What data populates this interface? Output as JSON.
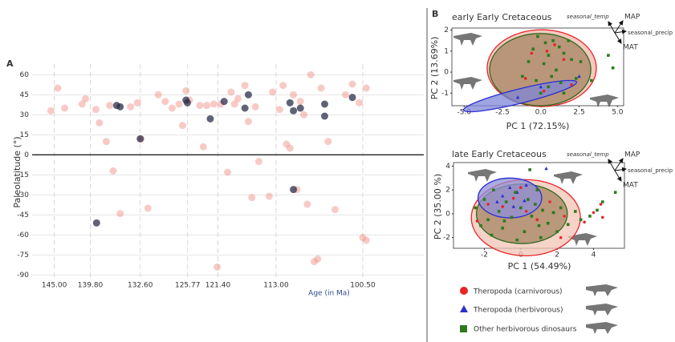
{
  "panels": [
    "A",
    "B"
  ],
  "chart_data": [
    {
      "type": "scatter",
      "ylabel": "Paleolatitude (°)",
      "xlabel": "Age (in Ma)",
      "xlim": [
        148.2,
        91.7
      ],
      "ylim": [
        -94,
        68
      ],
      "grid": true,
      "zero_line": true,
      "xticks": [
        {
          "value": 145,
          "label": "145.00"
        },
        {
          "value": 139.8,
          "label": "139.80"
        },
        {
          "value": 132.6,
          "label": "132.60"
        },
        125.77,
        {
          "value": 121.4,
          "label": "121.40"
        },
        {
          "value": 113,
          "label": "113.00"
        },
        {
          "value": 100.5,
          "label": "100.50"
        }
      ],
      "yticks": [
        60,
        45,
        30,
        15,
        0,
        -15,
        -30,
        -45,
        -60,
        -75,
        -90
      ],
      "series": [
        {
          "color": "#f08a80",
          "marker": "circle",
          "x": [
            144.5,
            145.5,
            143.5,
            141,
            140.5,
            139,
            138.5,
            137.5,
            137,
            136.5,
            135.5,
            134,
            133,
            132.5,
            131.5,
            130,
            129,
            128,
            127,
            126.5,
            126,
            125.5,
            124,
            123.5,
            123,
            122,
            121.5,
            121,
            120,
            119.5,
            119,
            118.5,
            117.5,
            117,
            116.5,
            116,
            115.5,
            114,
            113.5,
            112.5,
            112,
            111.5,
            111,
            110.5,
            110,
            109.5,
            109,
            108.5,
            108,
            107.5,
            107,
            106.5,
            105.5,
            104.5,
            103,
            102,
            101,
            100.5,
            100,
            100
          ],
          "values": [
            50,
            33,
            35,
            38,
            42,
            34,
            24,
            10,
            37,
            -12,
            -44,
            36,
            39,
            12,
            -40,
            45,
            40,
            35,
            38,
            22,
            48,
            41,
            37,
            6,
            37,
            38,
            -84,
            38,
            -13,
            47,
            38,
            42,
            52,
            25,
            -32,
            36,
            -5,
            -31,
            47,
            34,
            52,
            8,
            5,
            45,
            -26,
            40,
            30,
            -37,
            60,
            -80,
            -78,
            50,
            10,
            -41,
            45,
            53,
            39,
            -62,
            -64,
            50
          ]
        },
        {
          "color": "#2b2d48",
          "marker": "circle",
          "x": [
            138.9,
            136,
            135.5,
            132.6,
            126,
            125.8,
            122.5,
            120.5,
            117.5,
            117,
            111,
            110.5,
            110.5,
            109.5,
            106,
            106,
            102
          ],
          "values": [
            -51,
            37,
            36,
            12,
            41,
            39,
            27,
            40,
            35,
            45,
            39,
            -26,
            33,
            35,
            38,
            29,
            43
          ]
        }
      ]
    },
    {
      "type": "pca",
      "title": "early Early Cretaceous",
      "xlabel": "PC 1 (72.15%)",
      "ylabel": "PC 2 (13.69%)",
      "xlim": [
        -5.8,
        5.4
      ],
      "ylim": [
        -1.6,
        2.1
      ],
      "xticks": [
        {
          "value": -5,
          "label": "-5.0"
        },
        -2.5,
        {
          "value": 0,
          "label": "0.0"
        },
        2.5,
        {
          "value": 5,
          "label": "5.0"
        }
      ],
      "yticks": [
        -1,
        0,
        1,
        2
      ],
      "loadings": [
        "seasonal_temp",
        "MAP",
        "seasonal_precip",
        "MAT"
      ],
      "ellipses": [
        {
          "color": "#e8242a",
          "fill": "#f2b8a8",
          "cx": 0.06,
          "cy": 0.19,
          "rx": 3.56,
          "ry": 1.83,
          "angle": 0
        },
        {
          "color": "#2d6a1e",
          "fill": "#a48462",
          "cx": -0.04,
          "cy": 0.12,
          "rx": 3.3,
          "ry": 1.72,
          "angle": 0
        },
        {
          "color": "#2a2fd0",
          "fill": "#7f86d8",
          "cx": -1.35,
          "cy": -1.14,
          "rx": 3.8,
          "ry": 0.34,
          "angle": -14
        }
      ],
      "series": [
        {
          "name": "Theropoda (carnivorous)",
          "color": "#e8242a",
          "marker": "circle",
          "x": [
            -0.6,
            0.4,
            1.5,
            -1.0,
            0.2,
            2.0,
            0.9
          ],
          "values": [
            0.9,
            1.0,
            0.6,
            -0.3,
            -0.9,
            -0.6,
            1.3
          ]
        },
        {
          "name": "Theropoda (herbivorous)",
          "color": "#2a2fd0",
          "marker": "triangle",
          "x": [
            -1.5,
            0.0,
            2.5
          ],
          "values": [
            -1.2,
            -0.7,
            -0.2
          ]
        },
        {
          "name": "Other herbivorous dinosaurs",
          "color": "#2d7a1e",
          "marker": "square",
          "x": [
            -0.5,
            0.3,
            0.8,
            1.2,
            0.5,
            1.5,
            2.0,
            -0.8,
            0.2,
            1.0,
            2.6,
            -1.2,
            -0.3,
            0.5,
            1.3,
            2.3,
            0.0,
            1.5,
            3.3,
            4.4,
            4.7,
            -0.2,
            1.8,
            0.7
          ],
          "values": [
            1.1,
            1.4,
            1.5,
            1.2,
            0.8,
            0.9,
            0.6,
            0.5,
            0.4,
            0.1,
            0.5,
            -0.2,
            -0.4,
            -0.7,
            -0.5,
            -0.3,
            -1.0,
            -1.0,
            -0.4,
            0.8,
            0.2,
            1.7,
            1.5,
            -0.2
          ]
        }
      ]
    },
    {
      "type": "pca",
      "title": "late Early Cretaceous",
      "xlabel": "PC 1 (54.49%)",
      "ylabel": "PC 2 (35.00 %)",
      "xlim": [
        -3.7,
        5.7
      ],
      "ylim": [
        -2.9,
        4.3
      ],
      "xticks": [
        -2,
        0,
        2,
        4
      ],
      "yticks": [
        -2,
        0,
        2,
        4
      ],
      "loadings": [
        "seasonal_temp",
        "MAP",
        "seasonal_precip",
        "MAT"
      ],
      "ellipses": [
        {
          "color": "#e8242a",
          "fill": "#f2c4b4",
          "cx": 0.28,
          "cy": -0.33,
          "rx": 3.0,
          "ry": 3.2,
          "angle": 0
        },
        {
          "color": "#2d6a1e",
          "fill": "#a48462",
          "cx": 0.06,
          "cy": 0,
          "rx": 2.5,
          "ry": 2.5,
          "angle": 0
        },
        {
          "color": "#2a2fd0",
          "fill": "#8f8fd8",
          "cx": -0.6,
          "cy": 1.33,
          "rx": 1.75,
          "ry": 1.67,
          "angle": 0
        }
      ],
      "series": [
        {
          "color": "#e8242a",
          "marker": "circle",
          "x": [
            -1.8,
            -1,
            -0.4,
            0.3,
            0.9,
            1.6,
            2.4,
            3.5,
            4,
            4.5,
            4.4,
            -2.4,
            0,
            2.2
          ],
          "values": [
            0.8,
            0.6,
            1.3,
            0.2,
            -0.5,
            1,
            -0.2,
            -0.7,
            0.1,
            -0.3,
            0.8,
            -0.6,
            2.2,
            -2
          ]
        },
        {
          "color": "#2a2fd0",
          "marker": "triangle",
          "x": [
            -1,
            -0.6,
            -0.2,
            0.3,
            -1.3,
            0.2,
            -0.4,
            1.4
          ],
          "values": [
            1.5,
            2.2,
            1.8,
            2.4,
            1,
            1.1,
            0.6,
            3.8
          ]
        },
        {
          "color": "#2d7a1e",
          "marker": "square",
          "x": [
            -2.5,
            -2,
            -1.8,
            -1.5,
            -1.2,
            -1,
            -0.8,
            -0.5,
            -0.3,
            0,
            0.2,
            0.4,
            0.6,
            0.8,
            1,
            1.2,
            1.5,
            1.8,
            2,
            2.2,
            0.5,
            3.3,
            3.8,
            4.2,
            4.5,
            5.2,
            -1.6,
            -0.2,
            1.1,
            -2.2,
            0.9,
            -0.9,
            2.6,
            3.0
          ],
          "values": [
            0.5,
            1.2,
            -0.5,
            2,
            0.2,
            -1.2,
            1,
            -0.3,
            1.8,
            0.5,
            -1.5,
            1.2,
            -0.2,
            0.8,
            -1,
            0.3,
            -0.8,
            0.1,
            -1.5,
            0.5,
            3.7,
            -0.5,
            -0.2,
            0.3,
            1,
            1.8,
            -1.8,
            -2.2,
            -2,
            -1,
            2,
            -0.6,
            -0.9,
            0.2
          ]
        }
      ]
    }
  ]
}
